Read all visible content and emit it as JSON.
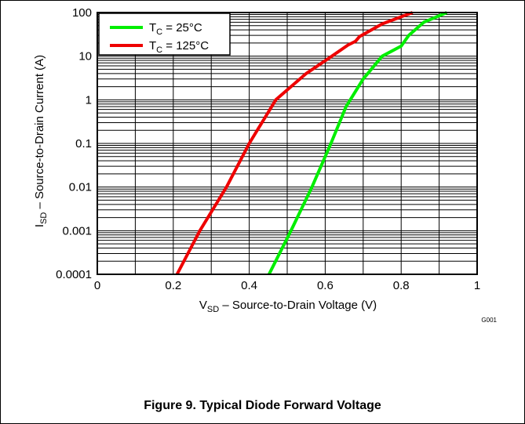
{
  "figure_id": "G001",
  "caption": "Figure 9. Typical Diode Forward Voltage",
  "colors": {
    "t25": "#00ee00",
    "t125": "#ee0000",
    "axis": "#000000",
    "grid": "#000000"
  },
  "chart_data": {
    "type": "line",
    "xlabel": {
      "main": "V",
      "sub": "SD",
      "rest": " – Source-to-Drain Voltage (V)"
    },
    "ylabel": {
      "main": "I",
      "sub": "SD",
      "rest": " – Source-to-Drain Current (A)"
    },
    "xlim": [
      0,
      1
    ],
    "ylim": [
      0.0001,
      100
    ],
    "yscale": "log",
    "grid": true,
    "legend_position": "top-left",
    "x_ticks": [
      "0",
      "0.2",
      "0.4",
      "0.6",
      "0.8",
      "1"
    ],
    "y_ticks": [
      "0.0001",
      "0.001",
      "0.01",
      "0.1",
      "1",
      "10",
      "100"
    ],
    "series": [
      {
        "name": {
          "main": "T",
          "sub": "C",
          "rest": " = 25°C"
        },
        "color": "#00ee00",
        "points": [
          [
            0.452,
            0.0001
          ],
          [
            0.51,
            0.001
          ],
          [
            0.565,
            0.01
          ],
          [
            0.615,
            0.1
          ],
          [
            0.655,
            0.7
          ],
          [
            0.7,
            3
          ],
          [
            0.75,
            10
          ],
          [
            0.8,
            17
          ],
          [
            0.82,
            30
          ],
          [
            0.86,
            60
          ],
          [
            0.92,
            100
          ]
        ]
      },
      {
        "name": {
          "main": "T",
          "sub": "C",
          "rest": " = 125°C"
        },
        "color": "#ee0000",
        "points": [
          [
            0.21,
            0.0001
          ],
          [
            0.27,
            0.001
          ],
          [
            0.34,
            0.01
          ],
          [
            0.4,
            0.1
          ],
          [
            0.47,
            1
          ],
          [
            0.55,
            4
          ],
          [
            0.61,
            9
          ],
          [
            0.66,
            18
          ],
          [
            0.68,
            22
          ],
          [
            0.69,
            28
          ],
          [
            0.75,
            55
          ],
          [
            0.83,
            100
          ]
        ]
      }
    ]
  }
}
